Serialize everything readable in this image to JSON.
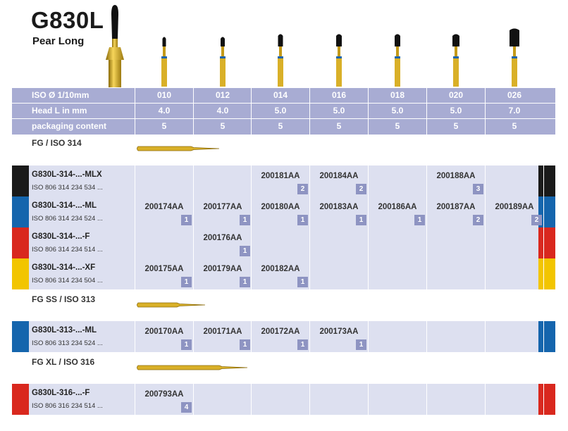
{
  "header": {
    "title": "G830L",
    "subtitle": "Pear Long"
  },
  "spec_rows": [
    {
      "label": "ISO Ø 1/10mm",
      "values": [
        "010",
        "012",
        "014",
        "016",
        "018",
        "020",
        "026"
      ]
    },
    {
      "label": "Head L in mm",
      "values": [
        "4.0",
        "4.0",
        "5.0",
        "5.0",
        "5.0",
        "5.0",
        "7.0"
      ]
    },
    {
      "label": "packaging content",
      "values": [
        "5",
        "5",
        "5",
        "5",
        "5",
        "5",
        "5"
      ]
    }
  ],
  "sections": [
    {
      "label": "FG / ISO 314",
      "rows": [
        {
          "name": "G830L-314-...-MLX",
          "iso": "ISO 806 314 234 534 ...",
          "color": "#1a1a1a",
          "cells": [
            null,
            null,
            {
              "code": "200181AA",
              "pack": "2"
            },
            {
              "code": "200184AA",
              "pack": "2"
            },
            null,
            {
              "code": "200188AA",
              "pack": "3"
            },
            null
          ]
        },
        {
          "name": "G830L-314-...-ML",
          "iso": "ISO 806 314 234 524 ...",
          "color": "#1565ad",
          "cells": [
            {
              "code": "200174AA",
              "pack": "1"
            },
            {
              "code": "200177AA",
              "pack": "1"
            },
            {
              "code": "200180AA",
              "pack": "1"
            },
            {
              "code": "200183AA",
              "pack": "1"
            },
            {
              "code": "200186AA",
              "pack": "1"
            },
            {
              "code": "200187AA",
              "pack": "2"
            },
            {
              "code": "200189AA",
              "pack": "2"
            }
          ]
        },
        {
          "name": "G830L-314-...-F",
          "iso": "ISO 806 314 234 514 ...",
          "color": "#d9281e",
          "cells": [
            null,
            {
              "code": "200176AA",
              "pack": "1"
            },
            null,
            null,
            null,
            null,
            null
          ]
        },
        {
          "name": "G830L-314-...-XF",
          "iso": "ISO 806 314 234 504 ...",
          "color": "#f2c500",
          "cells": [
            {
              "code": "200175AA",
              "pack": "1"
            },
            {
              "code": "200179AA",
              "pack": "1"
            },
            {
              "code": "200182AA",
              "pack": "1"
            },
            null,
            null,
            null,
            null
          ]
        }
      ]
    },
    {
      "label": "FG SS / ISO 313",
      "rows": [
        {
          "name": "G830L-313-...-ML",
          "iso": "ISO 806 313 234 524 ...",
          "color": "#1565ad",
          "cells": [
            {
              "code": "200170AA",
              "pack": "1"
            },
            {
              "code": "200171AA",
              "pack": "1"
            },
            {
              "code": "200172AA",
              "pack": "1"
            },
            {
              "code": "200173AA",
              "pack": "1"
            },
            null,
            null,
            null
          ]
        }
      ]
    },
    {
      "label": "FG XL / ISO 316",
      "rows": [
        {
          "name": "G830L-316-...-F",
          "iso": "ISO 806 316 234 514 ...",
          "color": "#d9281e",
          "cells": [
            {
              "code": "200793AA",
              "pack": "4"
            },
            null,
            null,
            null,
            null,
            null,
            null
          ]
        }
      ]
    }
  ],
  "colors": {
    "header_bg": "#a8acd3",
    "row_bg": "#dde0f0",
    "pack_badge": "#8e94c2",
    "gold": "#d4a514"
  }
}
